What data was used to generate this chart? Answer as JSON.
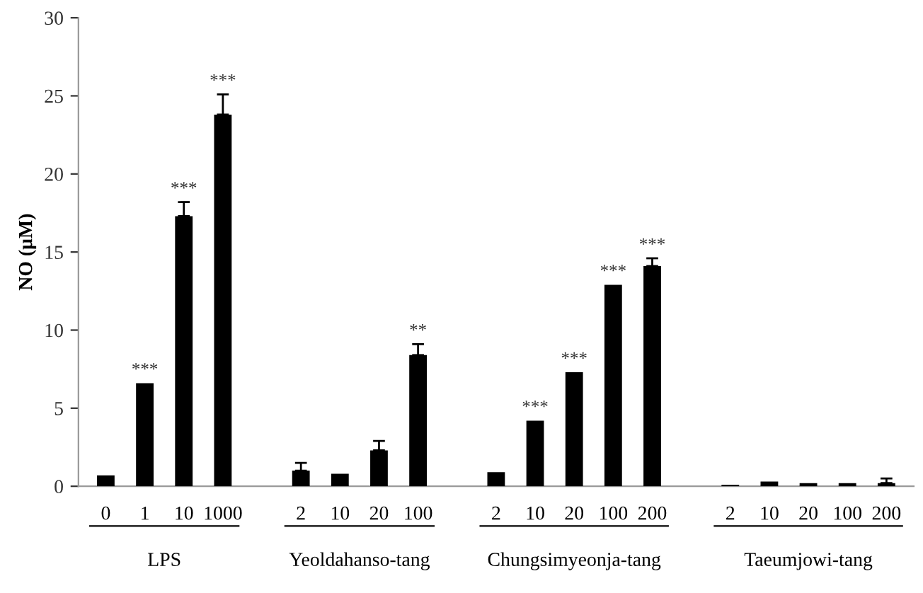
{
  "chart_data": {
    "type": "bar",
    "ylabel": "NO (μM)",
    "categories": [
      "0",
      "1",
      "10",
      "1000",
      null,
      "2",
      "10",
      "20",
      "100",
      null,
      "2",
      "10",
      "20",
      "100",
      "200",
      null,
      "2",
      "10",
      "20",
      "100",
      "200"
    ],
    "values": [
      0.7,
      6.6,
      17.3,
      23.8,
      null,
      1.0,
      0.8,
      2.3,
      8.4,
      null,
      0.9,
      4.2,
      7.3,
      12.9,
      14.1,
      null,
      0.1,
      0.3,
      0.2,
      0.2,
      0.2
    ],
    "errors": [
      null,
      null,
      0.9,
      1.3,
      null,
      0.5,
      null,
      0.6,
      0.7,
      null,
      null,
      null,
      null,
      null,
      0.5,
      null,
      null,
      null,
      null,
      null,
      0.3
    ],
    "value_labels": [
      null,
      "***",
      "***",
      "***",
      null,
      null,
      null,
      null,
      "**",
      null,
      null,
      "***",
      "***",
      "***",
      "***",
      null,
      null,
      null,
      null,
      null,
      null
    ],
    "color": "#000000",
    "annotations": [
      "LPS",
      "Yeoldahanso-tang",
      "Chungsimyeonja-tang",
      "Taeumjowi-tang"
    ],
    "ylim": [
      0,
      30
    ],
    "yticks": [
      0,
      5,
      10,
      15,
      20,
      25,
      30
    ],
    "grid": false
  }
}
